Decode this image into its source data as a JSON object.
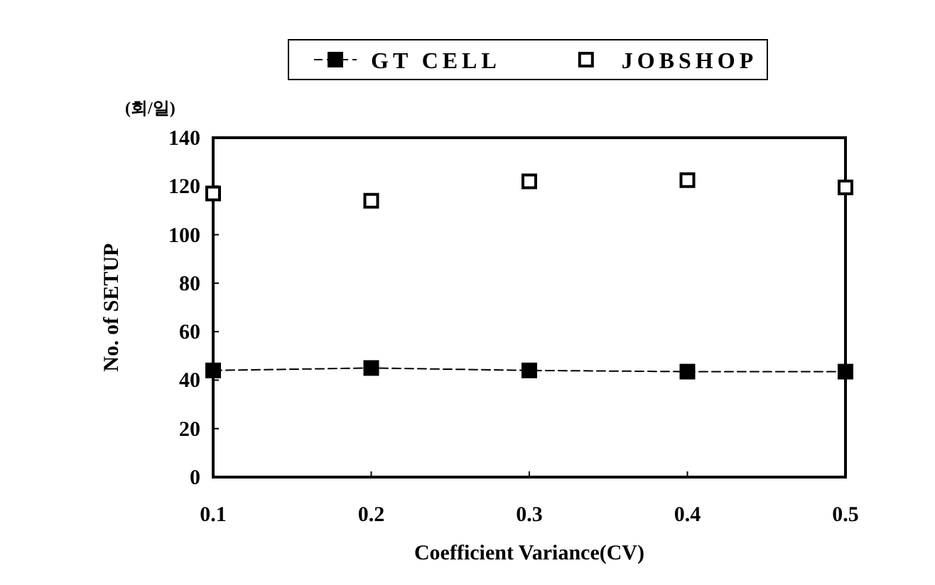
{
  "chart_data": {
    "type": "line",
    "xlabel": "Coefficient Variance(CV)",
    "ylabel": "No. of SETUP",
    "annotations": [
      "(회/일)"
    ],
    "x": [
      0.1,
      0.2,
      0.3,
      0.4,
      0.5
    ],
    "xlim": [
      0.1,
      0.5
    ],
    "xticks": [
      0.1,
      0.2,
      0.3,
      0.4,
      0.5
    ],
    "ylim": [
      0,
      140
    ],
    "yticks": [
      0,
      20,
      40,
      60,
      80,
      100,
      120,
      140
    ],
    "grid": false,
    "legend": "top",
    "marker": "square",
    "series": [
      {
        "name": "GT CELL",
        "line_style": "dashed",
        "color": "#000000",
        "values": [
          44,
          45,
          44,
          43.5,
          43.5
        ]
      },
      {
        "name": "JOBSHOP",
        "type": "scatter",
        "color": "#000000",
        "values": [
          117,
          114,
          122,
          122.5,
          119.5
        ]
      }
    ]
  }
}
